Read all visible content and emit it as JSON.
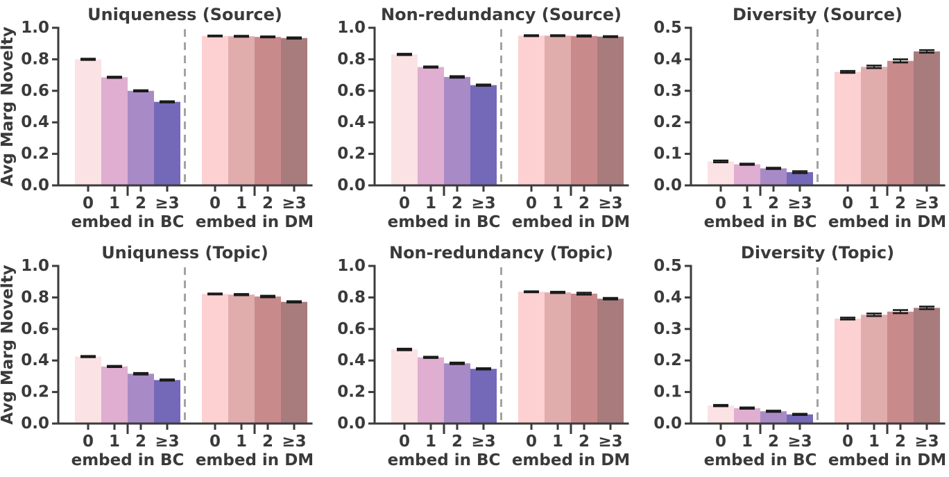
{
  "figure": {
    "background": "#ffffff",
    "text_color": "#3a3a3a",
    "axis_color": "#3b3b3b",
    "separator_color": "#a3a3a3",
    "errorbar_color": "#1a1a1a"
  },
  "palette": {
    "bc_bars": [
      "#fbe2e4",
      "#dfaed1",
      "#a88bc6",
      "#7468b8"
    ],
    "dm_bars": [
      "#fdd0d1",
      "#e0acac",
      "#c98a8b",
      "#a87b7d"
    ]
  },
  "chart_data": [
    {
      "type": "bar",
      "title": "Uniqueness (Source)",
      "ylabel": "Avg Marg Novelty",
      "xlabel": "",
      "ylim": [
        0.0,
        1.0
      ],
      "yticks": [
        0.0,
        0.2,
        0.4,
        0.6,
        0.8,
        1.0
      ],
      "grid": false,
      "legend": false,
      "separator": "dashed-vertical-line",
      "categories": [
        "0",
        "1",
        "2",
        "≥3"
      ],
      "groups": [
        {
          "label": "embed in BC",
          "palette": "bc_bars",
          "values": [
            0.8,
            0.686,
            0.6,
            0.53
          ],
          "errors": [
            0.004,
            0.004,
            0.004,
            0.004
          ]
        },
        {
          "label": "embed in DM",
          "palette": "dm_bars",
          "values": [
            0.948,
            0.946,
            0.942,
            0.935
          ],
          "errors": [
            0.003,
            0.003,
            0.003,
            0.004
          ]
        }
      ]
    },
    {
      "type": "bar",
      "title": "Non-redundancy (Source)",
      "ylabel": "",
      "xlabel": "",
      "ylim": [
        0.0,
        1.0
      ],
      "yticks": [
        0.0,
        0.2,
        0.4,
        0.6,
        0.8,
        1.0
      ],
      "grid": false,
      "legend": false,
      "separator": "dashed-vertical-line",
      "categories": [
        "0",
        "1",
        "2",
        "≥3"
      ],
      "groups": [
        {
          "label": "embed in BC",
          "palette": "bc_bars",
          "values": [
            0.831,
            0.751,
            0.688,
            0.636
          ],
          "errors": [
            0.004,
            0.004,
            0.005,
            0.004
          ]
        },
        {
          "label": "embed in DM",
          "palette": "dm_bars",
          "values": [
            0.95,
            0.95,
            0.948,
            0.944
          ],
          "errors": [
            0.003,
            0.003,
            0.004,
            0.003
          ]
        }
      ]
    },
    {
      "type": "bar",
      "title": "Diversity (Source)",
      "ylabel": "",
      "xlabel": "",
      "ylim": [
        0.0,
        0.5
      ],
      "yticks": [
        0.0,
        0.1,
        0.2,
        0.3,
        0.4,
        0.5
      ],
      "grid": false,
      "legend": false,
      "separator": "dashed-vertical-line",
      "categories": [
        "0",
        "1",
        "2",
        "≥3"
      ],
      "groups": [
        {
          "label": "embed in BC",
          "palette": "bc_bars",
          "values": [
            0.076,
            0.067,
            0.054,
            0.042
          ],
          "errors": [
            0.003,
            0.002,
            0.002,
            0.003
          ]
        },
        {
          "label": "embed in DM",
          "palette": "dm_bars",
          "values": [
            0.36,
            0.376,
            0.395,
            0.425
          ],
          "errors": [
            0.003,
            0.004,
            0.005,
            0.004
          ]
        }
      ]
    },
    {
      "type": "bar",
      "title": "Uniquness (Topic)",
      "ylabel": "Avg Marg Novelty",
      "xlabel": "",
      "ylim": [
        0.0,
        1.0
      ],
      "yticks": [
        0.0,
        0.2,
        0.4,
        0.6,
        0.8,
        1.0
      ],
      "grid": false,
      "legend": false,
      "separator": "dashed-vertical-line",
      "categories": [
        "0",
        "1",
        "2",
        "≥3"
      ],
      "groups": [
        {
          "label": "embed in BC",
          "palette": "bc_bars",
          "values": [
            0.425,
            0.362,
            0.316,
            0.276
          ],
          "errors": [
            0.004,
            0.004,
            0.005,
            0.004
          ]
        },
        {
          "label": "embed in DM",
          "palette": "dm_bars",
          "values": [
            0.822,
            0.818,
            0.806,
            0.772
          ],
          "errors": [
            0.003,
            0.004,
            0.005,
            0.004
          ]
        }
      ]
    },
    {
      "type": "bar",
      "title": "Non-redundancy (Topic)",
      "ylabel": "",
      "xlabel": "",
      "ylim": [
        0.0,
        1.0
      ],
      "yticks": [
        0.0,
        0.2,
        0.4,
        0.6,
        0.8,
        1.0
      ],
      "grid": false,
      "legend": false,
      "separator": "dashed-vertical-line",
      "categories": [
        "0",
        "1",
        "2",
        "≥3"
      ],
      "groups": [
        {
          "label": "embed in BC",
          "palette": "bc_bars",
          "values": [
            0.47,
            0.42,
            0.382,
            0.347
          ],
          "errors": [
            0.005,
            0.004,
            0.005,
            0.004
          ]
        },
        {
          "label": "embed in DM",
          "palette": "dm_bars",
          "values": [
            0.836,
            0.832,
            0.824,
            0.792
          ],
          "errors": [
            0.003,
            0.004,
            0.006,
            0.005
          ]
        }
      ]
    },
    {
      "type": "bar",
      "title": "Diversity (Topic)",
      "ylabel": "",
      "xlabel": "",
      "ylim": [
        0.0,
        0.5
      ],
      "yticks": [
        0.0,
        0.1,
        0.2,
        0.3,
        0.4,
        0.5
      ],
      "grid": false,
      "legend": false,
      "separator": "dashed-vertical-line",
      "categories": [
        "0",
        "1",
        "2",
        "≥3"
      ],
      "groups": [
        {
          "label": "embed in BC",
          "palette": "bc_bars",
          "values": [
            0.057,
            0.049,
            0.039,
            0.029
          ],
          "errors": [
            0.002,
            0.002,
            0.002,
            0.002
          ]
        },
        {
          "label": "embed in DM",
          "palette": "dm_bars",
          "values": [
            0.333,
            0.345,
            0.355,
            0.367
          ],
          "errors": [
            0.003,
            0.004,
            0.005,
            0.004
          ]
        }
      ]
    }
  ]
}
